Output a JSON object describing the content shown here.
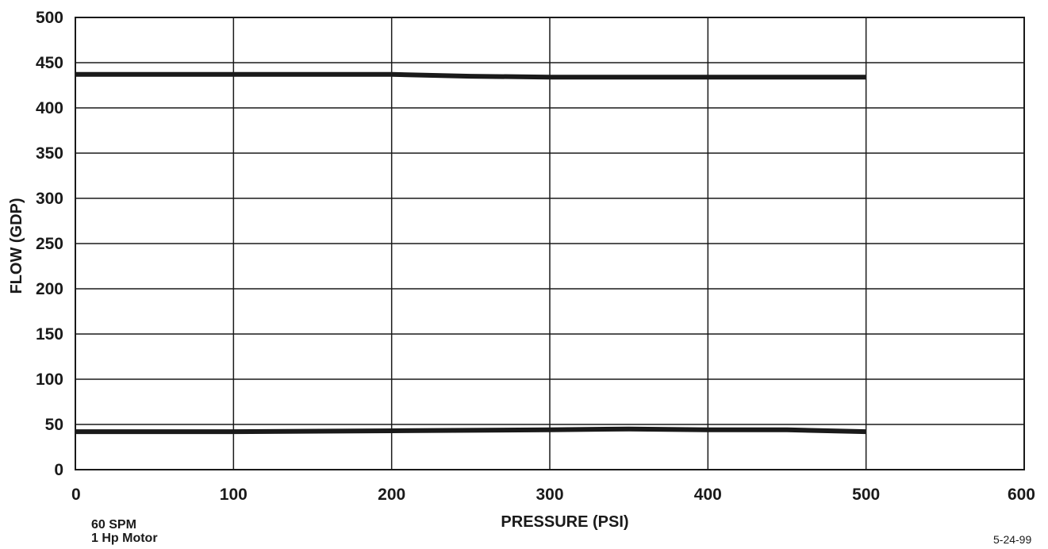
{
  "chart_data": {
    "type": "line",
    "title": "",
    "xlabel": "PRESSURE (PSI)",
    "ylabel": "FLOW (GDP)",
    "xlim": [
      0,
      600
    ],
    "ylim": [
      0,
      500
    ],
    "x_ticks": [
      0,
      100,
      200,
      300,
      400,
      500,
      600
    ],
    "y_ticks": [
      0,
      50,
      100,
      150,
      200,
      250,
      300,
      350,
      400,
      450,
      500
    ],
    "grid": true,
    "series": [
      {
        "x": [
          0,
          100,
          200,
          250,
          300,
          400,
          500
        ],
        "y": [
          437,
          437,
          437,
          435,
          434,
          434,
          434
        ]
      },
      {
        "x": [
          0,
          100,
          200,
          300,
          350,
          400,
          450,
          500
        ],
        "y": [
          42,
          42,
          43,
          44,
          45,
          44,
          44,
          42
        ]
      }
    ],
    "line_color": "#1a1a1a",
    "grid_color": "#1a1a1a"
  },
  "notes": {
    "line1": "60 SPM",
    "line2": "1 Hp Motor",
    "date": "5-24-99"
  }
}
